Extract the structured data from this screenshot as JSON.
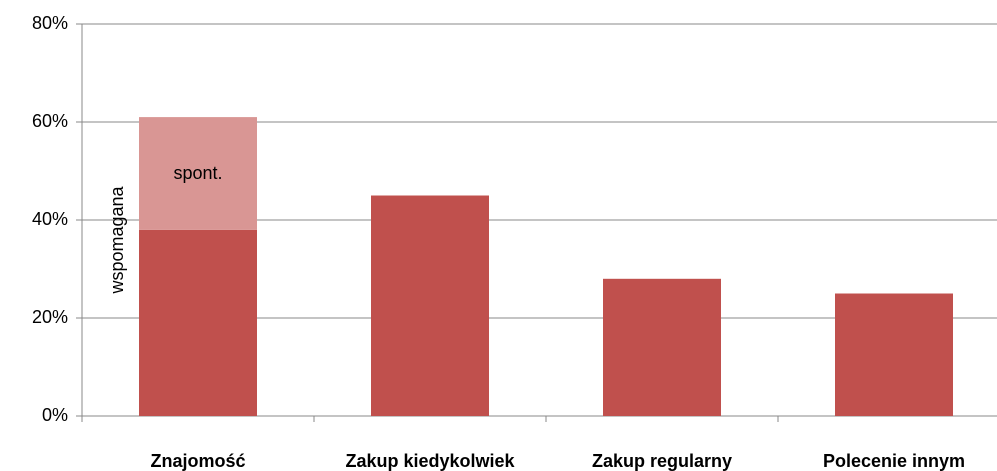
{
  "chart_data": {
    "type": "stacked_bar",
    "categories": [
      "Znajomość",
      "Zakup kiedykolwiek",
      "Zakup regularny",
      "Polecenie innym"
    ],
    "series": [
      {
        "name": "wspomagana",
        "color": "#c0504d",
        "values": [
          38,
          45,
          28,
          25
        ]
      },
      {
        "name": "spont.",
        "color": "#d99694",
        "values": [
          23,
          null,
          null,
          null
        ]
      }
    ],
    "ylim": [
      0,
      80
    ],
    "yticks": [
      {
        "value": 0,
        "label": "0%"
      },
      {
        "value": 20,
        "label": "20%"
      },
      {
        "value": 40,
        "label": "40%"
      },
      {
        "value": 60,
        "label": "60%"
      },
      {
        "value": 80,
        "label": "80%"
      }
    ],
    "grid": true
  }
}
